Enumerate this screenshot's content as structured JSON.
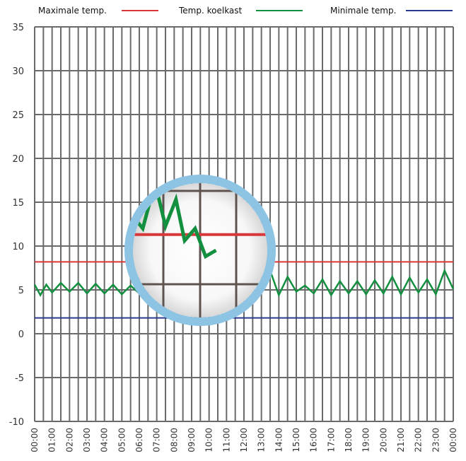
{
  "chart_data": {
    "type": "line",
    "legend": [
      {
        "label": "Maximale temp.",
        "color": "#d9383a",
        "series": "max"
      },
      {
        "label": "Temp. koelkast",
        "color": "#13903f",
        "series": "fridge"
      },
      {
        "label": "Minimale temp.",
        "color": "#2a3a8f",
        "series": "min"
      }
    ],
    "ylim": [
      -10,
      35
    ],
    "yticks": [
      "35",
      "30",
      "25",
      "20",
      "15",
      "10",
      "5",
      "0",
      "-5",
      "-10"
    ],
    "ytick_values": [
      35,
      30,
      25,
      20,
      15,
      10,
      5,
      0,
      -5,
      -10
    ],
    "xlim": [
      0,
      24
    ],
    "xticks": [
      "00:00",
      "01:00",
      "02:00",
      "03:00",
      "04:00",
      "05:00",
      "06:00",
      "07:00",
      "08:00",
      "09:00",
      "10:00",
      "11:00",
      "12:00",
      "13:00",
      "14:00",
      "15:00",
      "16:00",
      "17:00",
      "18:00",
      "19:00",
      "20:00",
      "21:00",
      "22:00",
      "23:00",
      "00:00"
    ],
    "grid": {
      "vertical_every_hours": 0.5,
      "horizontal_every": 5
    },
    "max_temp": 8.2,
    "min_temp": 1.8,
    "series": [
      {
        "name": "Temp. koelkast",
        "x": [
          0,
          0.33,
          0.67,
          1.0,
          1.5,
          2.0,
          2.5,
          3.0,
          3.5,
          4.0,
          4.5,
          5.0,
          5.5,
          6.0,
          6.5,
          7.0,
          7.5,
          8.0,
          8.5,
          9.0,
          9.5,
          10.0,
          10.5,
          11.0,
          11.5,
          12.0,
          12.5,
          13.0,
          13.5,
          14.0,
          14.5,
          15.0,
          15.5,
          16.0,
          16.5,
          17.0,
          17.5,
          18.0,
          18.5,
          19.0,
          19.5,
          20.0,
          20.5,
          21.0,
          21.5,
          22.0,
          22.5,
          23.0,
          23.5,
          24.0
        ],
        "values": [
          5.6,
          4.4,
          5.6,
          4.7,
          5.8,
          4.8,
          5.8,
          4.6,
          5.7,
          4.6,
          5.6,
          4.5,
          5.5,
          4.6,
          5.9,
          5.0,
          6.7,
          5.6,
          7.4,
          5.6,
          7.0,
          5.8,
          6.5,
          5.4,
          6.1,
          5.1,
          7.0,
          6.3,
          7.2,
          4.4,
          6.5,
          4.8,
          5.5,
          4.6,
          6.2,
          4.4,
          6.0,
          4.6,
          6.0,
          4.5,
          6.1,
          4.6,
          6.5,
          4.5,
          6.4,
          4.7,
          6.2,
          4.5,
          7.2,
          5.1
        ]
      }
    ],
    "zoom_inset": {
      "x": [
        4.95,
        5.6,
        6.2,
        6.9,
        7.5,
        8.1,
        8.6,
        9.2,
        9.8,
        10.4
      ],
      "values": [
        6.6,
        9.8,
        8.7,
        12.5,
        8.9,
        11.1,
        7.7,
        8.7,
        6.4,
        6.9
      ]
    }
  }
}
